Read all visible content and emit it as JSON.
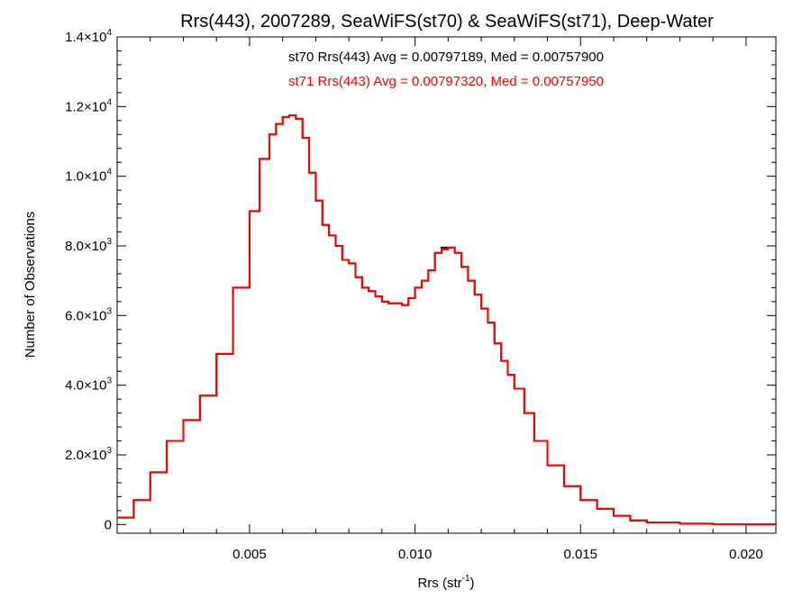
{
  "chart_data": {
    "type": "line",
    "title": "Rrs(443), 2007289, SeaWiFS(st70) & SeaWiFS(st71), Deep-Water",
    "xlabel": "Rrs (str",
    "xlabel_sup": "-1",
    "xlabel_end": ")",
    "ylabel": "Number of Observations",
    "xlim": [
      0.001,
      0.0209
    ],
    "ylim": [
      -250,
      14000
    ],
    "xticks": [
      {
        "value": 0.005,
        "label": "0.005"
      },
      {
        "value": 0.01,
        "label": "0.010"
      },
      {
        "value": 0.015,
        "label": "0.015"
      },
      {
        "value": 0.02,
        "label": "0.020"
      }
    ],
    "yticks": [
      {
        "value": 0,
        "label": "0"
      },
      {
        "value": 2000,
        "label": "2.0×10",
        "exp": "3"
      },
      {
        "value": 4000,
        "label": "4.0×10",
        "exp": "3"
      },
      {
        "value": 6000,
        "label": "6.0×10",
        "exp": "3"
      },
      {
        "value": 8000,
        "label": "8.0×10",
        "exp": "3"
      },
      {
        "value": 10000,
        "label": "1.0×10",
        "exp": "4"
      },
      {
        "value": 12000,
        "label": "1.2×10",
        "exp": "4"
      },
      {
        "value": 14000,
        "label": "1.4×10",
        "exp": "4"
      }
    ],
    "annotations": [
      {
        "text": "st70 Rrs(443) Avg = 0.00797189, Med = 0.00757900",
        "color": "#000000"
      },
      {
        "text": "st71 Rrs(443) Avg = 0.00797320, Med = 0.00757950",
        "color": "#ff0000"
      }
    ],
    "series": [
      {
        "color": "#000000",
        "x": [
          0.001,
          0.0015,
          0.002,
          0.0025,
          0.003,
          0.0035,
          0.004,
          0.0045,
          0.005,
          0.0053,
          0.0056,
          0.0058,
          0.006,
          0.0062,
          0.0064,
          0.0066,
          0.0068,
          0.007,
          0.0072,
          0.0074,
          0.0076,
          0.0078,
          0.008,
          0.0082,
          0.0084,
          0.0086,
          0.0088,
          0.009,
          0.0092,
          0.0094,
          0.0096,
          0.0098,
          0.01,
          0.0102,
          0.0104,
          0.0106,
          0.0108,
          0.011,
          0.0112,
          0.0114,
          0.0116,
          0.0118,
          0.012,
          0.0122,
          0.0124,
          0.0126,
          0.0128,
          0.013,
          0.0133,
          0.0136,
          0.014,
          0.0145,
          0.015,
          0.0155,
          0.016,
          0.0165,
          0.017,
          0.018,
          0.019,
          0.02,
          0.0209
        ],
        "y": [
          200,
          700,
          1500,
          2400,
          3000,
          3700,
          4900,
          6800,
          9000,
          10500,
          11200,
          11500,
          11700,
          11750,
          11650,
          11100,
          10100,
          9300,
          8600,
          8300,
          8000,
          7600,
          7500,
          7100,
          6800,
          6700,
          6550,
          6400,
          6350,
          6350,
          6300,
          6500,
          6800,
          7000,
          7300,
          7800,
          7950,
          7950,
          7800,
          7400,
          7000,
          6600,
          6200,
          5800,
          5200,
          4700,
          4300,
          3900,
          3200,
          2400,
          1700,
          1100,
          700,
          450,
          250,
          120,
          60,
          25,
          10,
          5,
          0
        ]
      },
      {
        "color": "#ff0000",
        "x": [
          0.001,
          0.0015,
          0.002,
          0.0025,
          0.003,
          0.0035,
          0.004,
          0.0045,
          0.005,
          0.0053,
          0.0056,
          0.0058,
          0.006,
          0.0062,
          0.0064,
          0.0066,
          0.0068,
          0.007,
          0.0072,
          0.0074,
          0.0076,
          0.0078,
          0.008,
          0.0082,
          0.0084,
          0.0086,
          0.0088,
          0.009,
          0.0092,
          0.0094,
          0.0096,
          0.0098,
          0.01,
          0.0102,
          0.0104,
          0.0106,
          0.0108,
          0.011,
          0.0112,
          0.0114,
          0.0116,
          0.0118,
          0.012,
          0.0122,
          0.0124,
          0.0126,
          0.0128,
          0.013,
          0.0133,
          0.0136,
          0.014,
          0.0145,
          0.015,
          0.0155,
          0.016,
          0.0165,
          0.017,
          0.018,
          0.019,
          0.02,
          0.0209
        ],
        "y": [
          200,
          700,
          1500,
          2400,
          3000,
          3700,
          4900,
          6800,
          9000,
          10500,
          11200,
          11500,
          11700,
          11750,
          11650,
          11100,
          10100,
          9300,
          8600,
          8300,
          8000,
          7600,
          7500,
          7100,
          6800,
          6700,
          6550,
          6400,
          6350,
          6350,
          6300,
          6500,
          6800,
          7000,
          7300,
          7800,
          7900,
          7950,
          7800,
          7400,
          7000,
          6600,
          6200,
          5800,
          5200,
          4700,
          4300,
          3900,
          3200,
          2400,
          1700,
          1100,
          700,
          450,
          250,
          120,
          60,
          25,
          10,
          5,
          0
        ]
      }
    ]
  }
}
